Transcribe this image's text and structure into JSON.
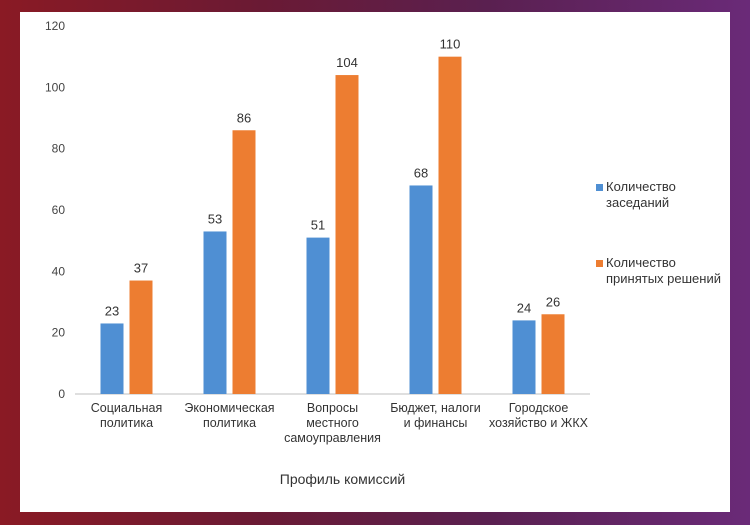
{
  "chart_data": {
    "type": "bar",
    "categories": [
      [
        "Социальная",
        "политика"
      ],
      [
        "Экономическая",
        "политика"
      ],
      [
        "Вопросы",
        "местного",
        "самоуправления"
      ],
      [
        "Бюджет, налоги",
        "и финансы"
      ],
      [
        "Городское",
        "хозяйство и ЖКХ"
      ]
    ],
    "series": [
      {
        "name": [
          "Количество",
          "заседаний"
        ],
        "color": "#4f8fd3",
        "values": [
          23,
          53,
          51,
          68,
          24
        ]
      },
      {
        "name": [
          "Количество",
          "принятых решений"
        ],
        "color": "#ed7d31",
        "values": [
          37,
          86,
          104,
          110,
          26
        ]
      }
    ],
    "xlabel": "Профиль комиссий",
    "ylabel": "",
    "ylim": [
      0,
      120
    ],
    "yticks": [
      0,
      20,
      40,
      60,
      80,
      100,
      120
    ],
    "grid": false,
    "legend": "right"
  }
}
